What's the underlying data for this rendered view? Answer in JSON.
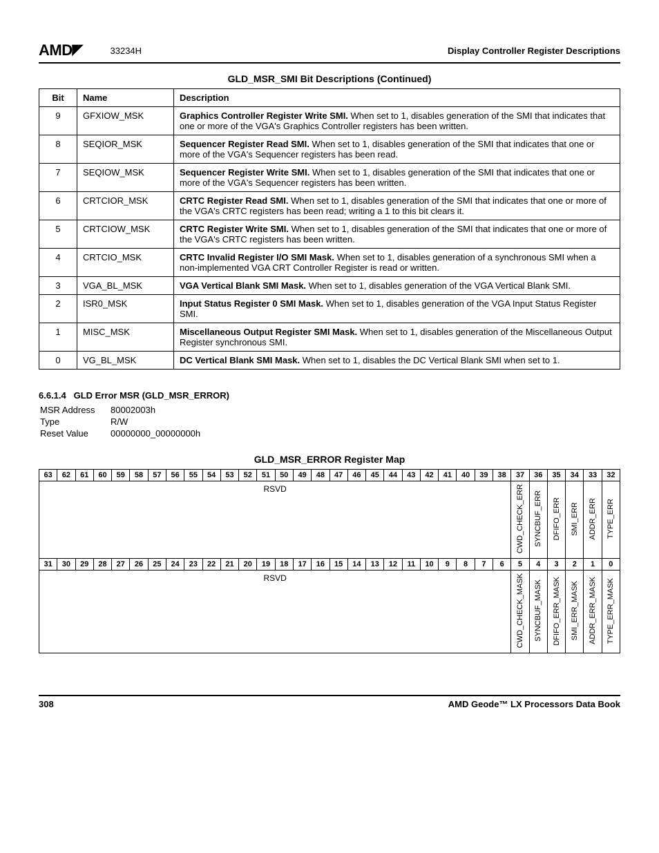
{
  "header": {
    "logo_text": "AMD",
    "doc_number": "33234H",
    "section_title": "Display Controller Register Descriptions"
  },
  "bit_table": {
    "caption": "GLD_MSR_SMI Bit Descriptions (Continued)",
    "columns": [
      "Bit",
      "Name",
      "Description"
    ],
    "rows": [
      {
        "bit": "9",
        "name": "GFXIOW_MSK",
        "bold": "Graphics Controller Register Write SMI.",
        "rest": " When set to 1, disables generation of the SMI that indicates that one or more of the VGA's Graphics Controller registers has been written."
      },
      {
        "bit": "8",
        "name": "SEQIOR_MSK",
        "bold": "Sequencer Register Read SMI.",
        "rest": " When set to 1, disables generation of the SMI that indicates that one or more of the VGA's Sequencer registers has been read."
      },
      {
        "bit": "7",
        "name": "SEQIOW_MSK",
        "bold": "Sequencer Register Write SMI.",
        "rest": " When set to 1, disables generation of the SMI that indicates that one or more of the VGA's Sequencer registers has been written."
      },
      {
        "bit": "6",
        "name": "CRTCIOR_MSK",
        "bold": "CRTC Register Read SMI.",
        "rest": " When set to 1, disables generation of the SMI that indicates that one or more of the VGA's CRTC registers has been read; writing a 1 to this bit clears it."
      },
      {
        "bit": "5",
        "name": "CRTCIOW_MSK",
        "bold": "CRTC Register Write SMI.",
        "rest": " When set to 1, disables generation of the SMI that indicates that one or more of the VGA's CRTC registers has been written."
      },
      {
        "bit": "4",
        "name": "CRTCIO_MSK",
        "bold": "CRTC Invalid Register I/O SMI Mask.",
        "rest": " When set to 1, disables generation of a synchronous SMI when a non-implemented VGA CRT Controller Register is read or written."
      },
      {
        "bit": "3",
        "name": "VGA_BL_MSK",
        "bold": "VGA Vertical Blank SMI Mask.",
        "rest": " When set to 1, disables generation of the VGA Vertical Blank SMI."
      },
      {
        "bit": "2",
        "name": "ISR0_MSK",
        "bold": "Input Status Register 0 SMI Mask.",
        "rest": " When set to 1, disables generation of the VGA Input Status Register SMI."
      },
      {
        "bit": "1",
        "name": "MISC_MSK",
        "bold": "Miscellaneous Output Register SMI Mask.",
        "rest": " When set to 1, disables generation of the Miscellaneous Output Register synchronous SMI."
      },
      {
        "bit": "0",
        "name": "VG_BL_MSK",
        "bold": "DC Vertical Blank SMI Mask.",
        "rest": " When set to 1, disables the DC Vertical Blank SMI when set to 1."
      }
    ]
  },
  "subsection": {
    "number": "6.6.1.4",
    "title": "GLD Error MSR (GLD_MSR_ERROR)",
    "msr_address_label": "MSR Address",
    "msr_address": "80002003h",
    "type_label": "Type",
    "type": "R/W",
    "reset_label": "Reset Value",
    "reset": "00000000_00000000h"
  },
  "reg_map": {
    "caption": "GLD_MSR_ERROR Register Map",
    "upper_bits": [
      "63",
      "62",
      "61",
      "60",
      "59",
      "58",
      "57",
      "56",
      "55",
      "54",
      "53",
      "52",
      "51",
      "50",
      "49",
      "48",
      "47",
      "46",
      "45",
      "44",
      "43",
      "42",
      "41",
      "40",
      "39",
      "38",
      "37",
      "36",
      "35",
      "34",
      "33",
      "32"
    ],
    "upper_rsvd": "RSVD",
    "upper_fields": [
      "CWD_CHECK_ERR",
      "SYNCBUF_ERR",
      "DFIFO_ERR",
      "SMI_ERR",
      "ADDR_ERR",
      "TYPE_ERR"
    ],
    "lower_bits": [
      "31",
      "30",
      "29",
      "28",
      "27",
      "26",
      "25",
      "24",
      "23",
      "22",
      "21",
      "20",
      "19",
      "18",
      "17",
      "16",
      "15",
      "14",
      "13",
      "12",
      "11",
      "10",
      "9",
      "8",
      "7",
      "6",
      "5",
      "4",
      "3",
      "2",
      "1",
      "0"
    ],
    "lower_rsvd": "RSVD",
    "lower_fields": [
      "CWD_CHECK_MASK",
      "SYNCBUF_MASK",
      "DFIFO_ERR_MASK",
      "SMI_ERR_MASK",
      "ADDR_ERR_MASK",
      "TYPE_ERR_MASK"
    ]
  },
  "footer": {
    "page": "308",
    "book": "AMD Geode™ LX Processors Data Book"
  }
}
